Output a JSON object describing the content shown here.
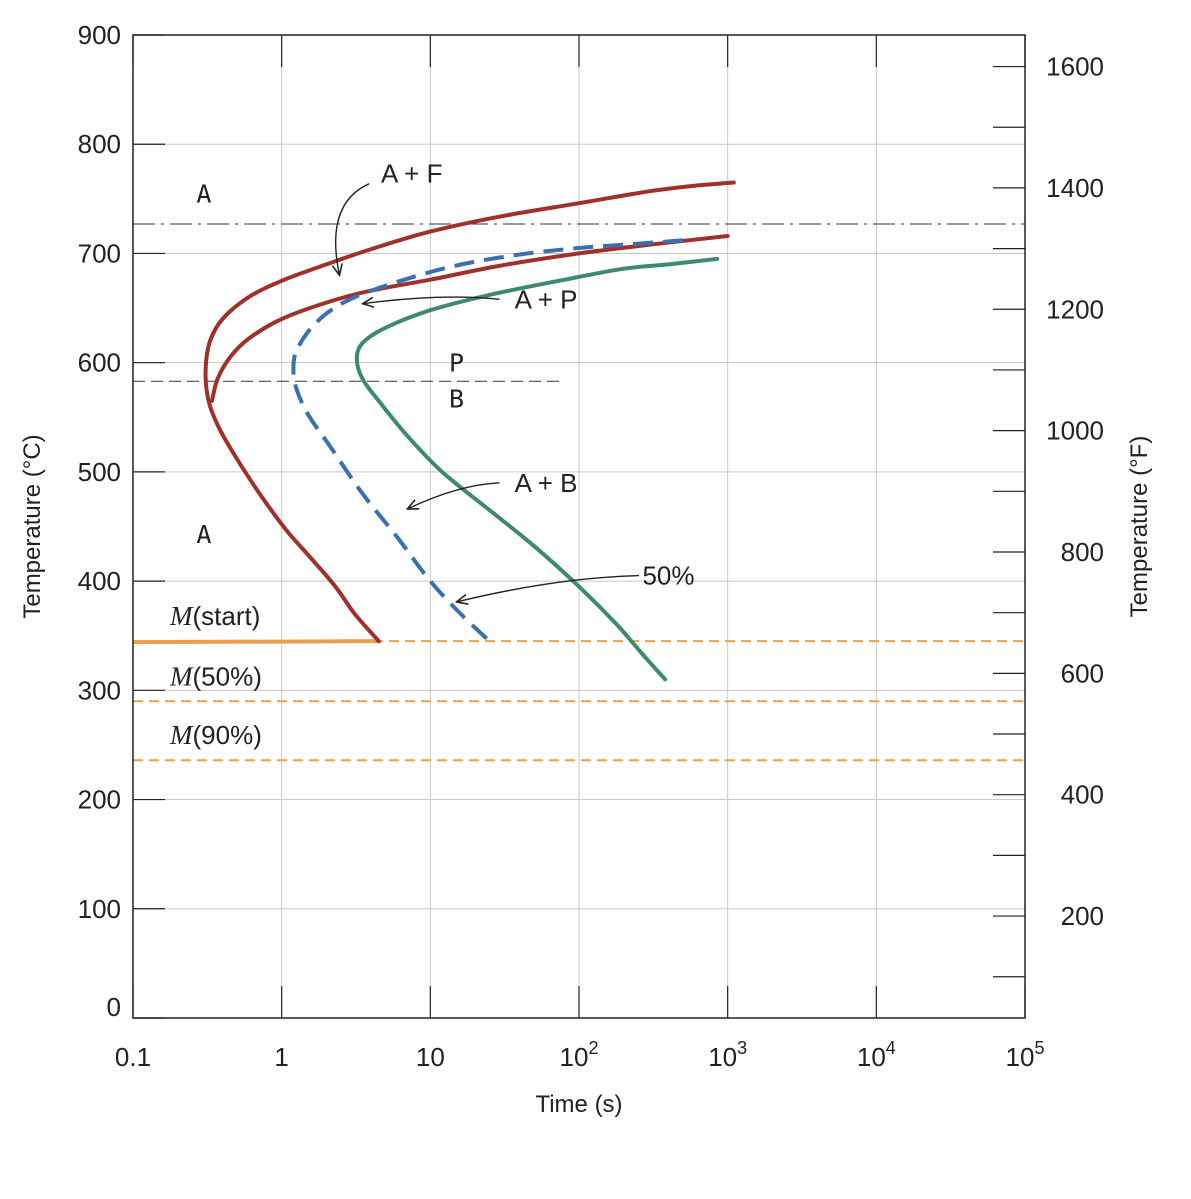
{
  "chart_data": {
    "type": "line",
    "xlabel": "Time (s)",
    "ylabel_left": "Temperature (°C)",
    "ylabel_right": "Temperature (°F)",
    "x_scale": "log",
    "xlim": [
      0.1,
      100000
    ],
    "ylim": [
      0,
      900
    ],
    "y_right_lim_F": [
      32,
      1652
    ],
    "grid": true,
    "x_ticks": [
      {
        "value": 0.1,
        "base": "0.1",
        "exp": ""
      },
      {
        "value": 1,
        "base": "1",
        "exp": ""
      },
      {
        "value": 10,
        "base": "10",
        "exp": ""
      },
      {
        "value": 100,
        "base": "10",
        "exp": "2"
      },
      {
        "value": 1000,
        "base": "10",
        "exp": "3"
      },
      {
        "value": 10000,
        "base": "10",
        "exp": "4"
      },
      {
        "value": 100000,
        "base": "10",
        "exp": "5"
      }
    ],
    "y_ticks_left": [
      0,
      100,
      200,
      300,
      400,
      500,
      600,
      700,
      800,
      900
    ],
    "y_ticks_right": [
      200,
      400,
      600,
      800,
      1000,
      1200,
      1400,
      1600
    ],
    "eutectoid_temp": 727,
    "pearlite_bainite_boundary_temp": 583,
    "martensite_lines": [
      {
        "name": "M(start)",
        "symbol": "M",
        "suffix": "(start)",
        "temp": 345,
        "color": "#e8a050"
      },
      {
        "name": "M(50%)",
        "symbol": "M",
        "suffix": "(50%)",
        "temp": 290,
        "color": "#e8a050"
      },
      {
        "name": "M(90%)",
        "symbol": "M",
        "suffix": "(90%)",
        "temp": 236,
        "color": "#e8a050"
      }
    ],
    "series": [
      {
        "name": "",
        "style": "solid",
        "color": "#a0302a",
        "points": [
          [
            1100,
            765
          ],
          [
            600,
            762
          ],
          [
            300,
            757
          ],
          [
            100,
            746
          ],
          [
            30,
            734
          ],
          [
            10,
            720
          ],
          [
            4,
            704
          ],
          [
            2,
            690
          ],
          [
            1,
            675
          ],
          [
            0.6,
            660
          ],
          [
            0.4,
            640
          ],
          [
            0.33,
            620
          ],
          [
            0.31,
            600
          ],
          [
            0.31,
            580
          ],
          [
            0.33,
            560
          ],
          [
            0.38,
            540
          ],
          [
            0.46,
            520
          ],
          [
            0.6,
            495
          ],
          [
            0.8,
            470
          ],
          [
            1.1,
            445
          ],
          [
            1.6,
            420
          ],
          [
            2.3,
            395
          ],
          [
            3.1,
            370
          ],
          [
            4.5,
            345
          ]
        ]
      },
      {
        "name": "",
        "style": "solid",
        "color": "#a0302a",
        "points": [
          [
            1000,
            716
          ],
          [
            300,
            708
          ],
          [
            100,
            700
          ],
          [
            30,
            689
          ],
          [
            10,
            676
          ],
          [
            4,
            666
          ],
          [
            2,
            655
          ],
          [
            1,
            640
          ],
          [
            0.6,
            622
          ],
          [
            0.45,
            605
          ],
          [
            0.37,
            585
          ],
          [
            0.34,
            565
          ]
        ]
      },
      {
        "name": "",
        "style": "dashed",
        "color": "#3a70b0",
        "points": [
          [
            500,
            712
          ],
          [
            200,
            708
          ],
          [
            100,
            705
          ],
          [
            40,
            699
          ],
          [
            15,
            689
          ],
          [
            6,
            674
          ],
          [
            3,
            659
          ],
          [
            2,
            645
          ],
          [
            1.5,
            628
          ],
          [
            1.25,
            610
          ],
          [
            1.2,
            595
          ],
          [
            1.25,
            577
          ],
          [
            1.5,
            553
          ],
          [
            2.2,
            520
          ],
          [
            3.5,
            480
          ],
          [
            6,
            440
          ],
          [
            10,
            400
          ],
          [
            16,
            370
          ],
          [
            25,
            345
          ]
        ]
      },
      {
        "name": "",
        "style": "solid",
        "color": "#3d8a6e",
        "points": [
          [
            850,
            695
          ],
          [
            400,
            690
          ],
          [
            200,
            686
          ],
          [
            80,
            676
          ],
          [
            25,
            662
          ],
          [
            10,
            648
          ],
          [
            5,
            632
          ],
          [
            3.5,
            618
          ],
          [
            3.2,
            603
          ],
          [
            3.5,
            585
          ],
          [
            4.5,
            565
          ],
          [
            7,
            533
          ],
          [
            12,
            500
          ],
          [
            25,
            465
          ],
          [
            50,
            432
          ],
          [
            100,
            395
          ],
          [
            180,
            360
          ],
          [
            280,
            330
          ],
          [
            380,
            310
          ]
        ]
      }
    ],
    "region_labels": [
      {
        "text": "A",
        "x": 0.3,
        "y": 755
      },
      {
        "text": "A",
        "x": 0.3,
        "y": 443
      },
      {
        "text": "P",
        "x": 15,
        "y": 600
      },
      {
        "text": "B",
        "x": 15,
        "y": 567
      }
    ],
    "annotations": [
      {
        "text": "A + F",
        "x": 7.5,
        "y": 773,
        "arrow_to": [
          2.45,
          680
        ]
      },
      {
        "text": "A + P",
        "x": 60,
        "y": 658,
        "arrow_to": [
          3.5,
          654
        ]
      },
      {
        "text": "A + B",
        "x": 60,
        "y": 490,
        "arrow_to": [
          7,
          466
        ]
      },
      {
        "text": "50%",
        "x": 400,
        "y": 405,
        "arrow_to": [
          15,
          381
        ]
      }
    ]
  }
}
